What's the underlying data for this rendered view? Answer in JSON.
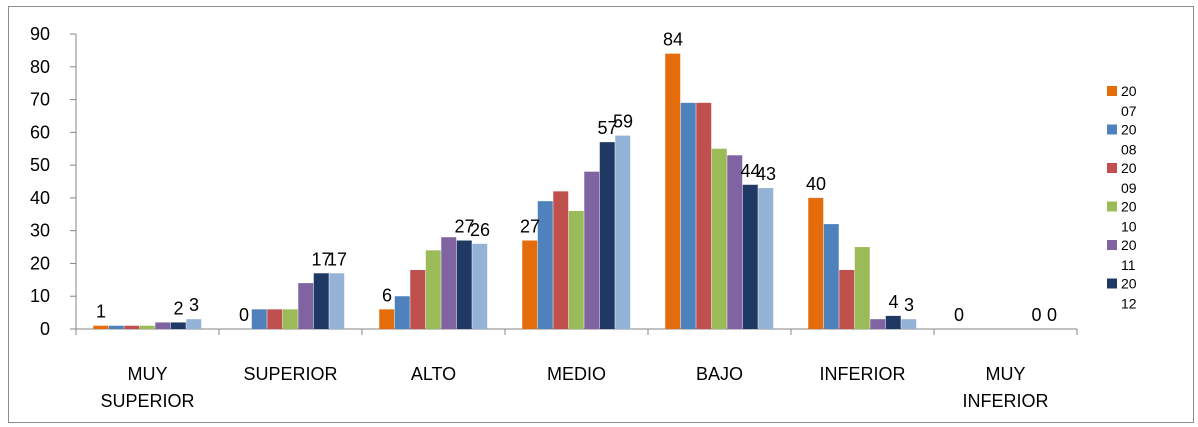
{
  "chart_data": {
    "type": "bar",
    "categories": [
      [
        "MUY",
        "SUPERIOR"
      ],
      [
        "SUPERIOR"
      ],
      [
        "ALTO"
      ],
      [
        "MEDIO"
      ],
      [
        "BAJO"
      ],
      [
        "INFERIOR"
      ],
      [
        "MUY",
        "INFERIOR"
      ]
    ],
    "series": [
      {
        "name": "2007",
        "legend_lines": [
          "20",
          "07"
        ],
        "color": "#E46C0A",
        "values": [
          1,
          0,
          6,
          27,
          84,
          40,
          0
        ]
      },
      {
        "name": "2008",
        "legend_lines": [
          "20",
          "08"
        ],
        "color": "#4F81BD",
        "values": [
          1,
          6,
          10,
          39,
          69,
          32,
          0
        ]
      },
      {
        "name": "2009",
        "legend_lines": [
          "20",
          "09"
        ],
        "color": "#C0504D",
        "values": [
          1,
          6,
          18,
          42,
          69,
          18,
          0
        ]
      },
      {
        "name": "2010",
        "legend_lines": [
          "20",
          "10"
        ],
        "color": "#9BBB59",
        "values": [
          1,
          6,
          24,
          36,
          55,
          25,
          0
        ]
      },
      {
        "name": "2011",
        "legend_lines": [
          "20",
          "11"
        ],
        "color": "#8064A2",
        "values": [
          2,
          14,
          28,
          48,
          53,
          3,
          0
        ]
      },
      {
        "name": "2012",
        "legend_lines": [
          "20",
          "12"
        ],
        "color": "#1F3864",
        "values": [
          2,
          17,
          27,
          57,
          44,
          4,
          0
        ]
      },
      {
        "name": "",
        "color": "#95B3D7",
        "values": [
          3,
          17,
          26,
          59,
          43,
          3,
          0
        ]
      }
    ],
    "data_labels": [
      {
        "category": 0,
        "series": 0,
        "text": "1"
      },
      {
        "category": 0,
        "series": 5,
        "text": "2"
      },
      {
        "category": 0,
        "series": 6,
        "text": "3"
      },
      {
        "category": 1,
        "series": 0,
        "text": "0"
      },
      {
        "category": 1,
        "series": 5,
        "text": "17"
      },
      {
        "category": 1,
        "series": 6,
        "text": "17"
      },
      {
        "category": 2,
        "series": 0,
        "text": "6"
      },
      {
        "category": 2,
        "series": 5,
        "text": "27"
      },
      {
        "category": 2,
        "series": 6,
        "text": "26"
      },
      {
        "category": 3,
        "series": 0,
        "text": "27"
      },
      {
        "category": 3,
        "series": 5,
        "text": "57"
      },
      {
        "category": 3,
        "series": 6,
        "text": "59"
      },
      {
        "category": 4,
        "series": 0,
        "text": "84"
      },
      {
        "category": 4,
        "series": 5,
        "text": "44"
      },
      {
        "category": 4,
        "series": 6,
        "text": "43"
      },
      {
        "category": 5,
        "series": 0,
        "text": "40"
      },
      {
        "category": 5,
        "series": 5,
        "text": "4"
      },
      {
        "category": 5,
        "series": 6,
        "text": "3"
      },
      {
        "category": 6,
        "series": 0,
        "text": "0"
      },
      {
        "category": 6,
        "series": 5,
        "text": "0"
      },
      {
        "category": 6,
        "series": 6,
        "text": "0"
      }
    ],
    "yticks": [
      "0",
      "10",
      "20",
      "30",
      "40",
      "50",
      "60",
      "70",
      "80",
      "90"
    ],
    "ylim": [
      0,
      90
    ],
    "grid": false,
    "legend_position": "right"
  }
}
